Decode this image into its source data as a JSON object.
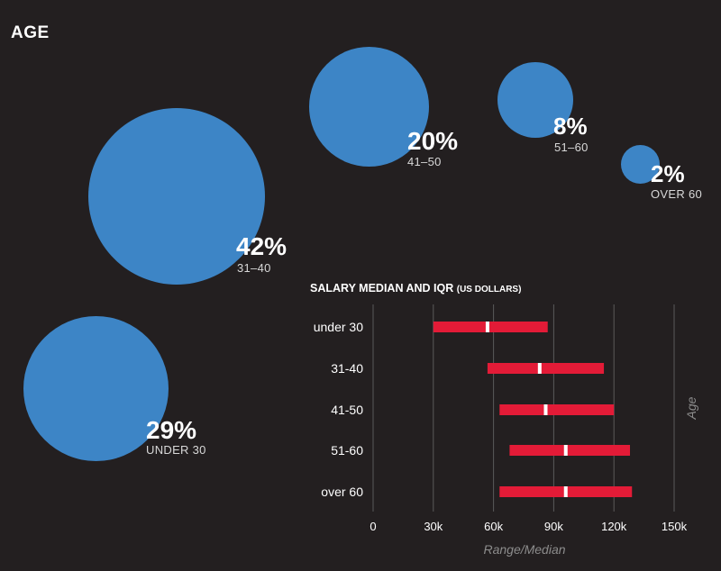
{
  "header": {
    "title": "AGE"
  },
  "age_bubbles": [
    {
      "percent": "42%",
      "group": "31–40",
      "value": 42
    },
    {
      "percent": "20%",
      "group": "41–50",
      "value": 20
    },
    {
      "percent": "8%",
      "group": "51–60",
      "value": 8
    },
    {
      "percent": "2%",
      "group": "OVER 60",
      "value": 2
    },
    {
      "percent": "29%",
      "group": "UNDER 30",
      "value": 29
    }
  ],
  "colors": {
    "bubble": "#3d85c6",
    "bar": "#e31b37",
    "median": "#ffffff",
    "grid": "#5a5a5a",
    "background": "#231f20"
  },
  "salary": {
    "title": "SALARY MEDIAN AND IQR",
    "unit": "(US DOLLARS)"
  },
  "chart_data": [
    {
      "type": "bubble",
      "title": "AGE",
      "categories": [
        "31–40",
        "41–50",
        "51–60",
        "OVER 60",
        "UNDER 30"
      ],
      "values": [
        42,
        20,
        8,
        2,
        29
      ],
      "unit": "%"
    },
    {
      "type": "range-bar",
      "title": "SALARY MEDIAN AND IQR (US DOLLARS)",
      "categories": [
        "under 30",
        "31-40",
        "41-50",
        "51-60",
        "over 60"
      ],
      "series": [
        {
          "name": "IQR low",
          "values": [
            30000,
            57000,
            63000,
            68000,
            63000
          ]
        },
        {
          "name": "IQR high",
          "values": [
            87000,
            115000,
            120000,
            128000,
            129000
          ]
        },
        {
          "name": "Median",
          "values": [
            57000,
            83000,
            86000,
            96000,
            96000
          ]
        }
      ],
      "xlabel": "Range/Median",
      "ylabel": "Age",
      "xticks": [
        0,
        30000,
        60000,
        90000,
        120000,
        150000
      ],
      "xtick_labels": [
        "0",
        "30k",
        "60k",
        "90k",
        "120k",
        "150k"
      ],
      "xlim": [
        0,
        150000
      ],
      "grid": true
    }
  ]
}
